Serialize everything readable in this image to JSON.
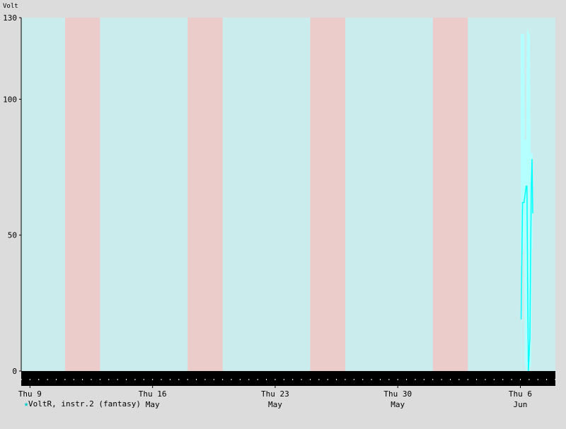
{
  "chart_data": {
    "type": "line",
    "title": "",
    "ylabel": "Volt",
    "xlabel": "",
    "ylim": [
      0,
      130
    ],
    "xlim": [
      "2013-05-08T12:00",
      "2013-06-08T00:00"
    ],
    "yticks": [
      {
        "value": 0,
        "label": "0"
      },
      {
        "value": 50,
        "label": "50"
      },
      {
        "value": 100,
        "label": "100"
      },
      {
        "value": 130,
        "label": "130"
      }
    ],
    "xticks": [
      {
        "at": "2013-05-09T00:00",
        "line1": "Thu 9",
        "line2": ""
      },
      {
        "at": "2013-05-16T00:00",
        "line1": "Thu 16",
        "line2": "May"
      },
      {
        "at": "2013-05-23T00:00",
        "line1": "Thu 23",
        "line2": "May"
      },
      {
        "at": "2013-05-30T00:00",
        "line1": "Thu 30",
        "line2": "May"
      },
      {
        "at": "2013-06-06T00:00",
        "line1": "Thu 6",
        "line2": "Jun"
      }
    ],
    "weekend_bands": [
      {
        "start": "2013-05-11T00:00",
        "end": "2013-05-13T00:00"
      },
      {
        "start": "2013-05-18T00:00",
        "end": "2013-05-20T00:00"
      },
      {
        "start": "2013-05-25T00:00",
        "end": "2013-05-27T00:00"
      },
      {
        "start": "2013-06-01T00:00",
        "end": "2013-06-03T00:00"
      }
    ],
    "series": [
      {
        "name": "VoltR, instr.2 (fantasy)",
        "color": "#00ffff",
        "avg": [
          {
            "x": "2013-06-06T01:00",
            "y": 19
          },
          {
            "x": "2013-06-06T03:00",
            "y": 62
          },
          {
            "x": "2013-06-06T05:00",
            "y": 62
          },
          {
            "x": "2013-06-06T08:00",
            "y": 68
          },
          {
            "x": "2013-06-06T09:00",
            "y": 68
          },
          {
            "x": "2013-06-06T10:00",
            "y": 32
          },
          {
            "x": "2013-06-06T11:00",
            "y": 0
          },
          {
            "x": "2013-06-06T13:00",
            "y": 12
          },
          {
            "x": "2013-06-06T15:00",
            "y": 68
          },
          {
            "x": "2013-06-06T16:00",
            "y": 78
          },
          {
            "x": "2013-06-06T17:00",
            "y": 58
          }
        ],
        "range": [
          {
            "x": "2013-06-06T00:30",
            "min": 0,
            "max": 124
          },
          {
            "x": "2013-06-06T01:00",
            "min": 2,
            "max": 124
          },
          {
            "x": "2013-06-06T02:00",
            "min": 48,
            "max": 124
          },
          {
            "x": "2013-06-06T03:00",
            "min": 44,
            "max": 124
          },
          {
            "x": "2013-06-06T04:00",
            "min": 44,
            "max": 124
          },
          {
            "x": "2013-06-06T05:00",
            "min": 50,
            "max": 124
          },
          {
            "x": "2013-06-06T06:00",
            "min": 2,
            "max": 85
          },
          {
            "x": "2013-06-06T07:00",
            "min": 2,
            "max": 85
          },
          {
            "x": "2013-06-06T08:00",
            "min": 0,
            "max": 85
          },
          {
            "x": "2013-06-06T09:00",
            "min": 0,
            "max": 125
          },
          {
            "x": "2013-06-06T10:00",
            "min": 0,
            "max": 126
          },
          {
            "x": "2013-06-06T11:00",
            "min": 0,
            "max": 125
          },
          {
            "x": "2013-06-06T12:00",
            "min": 0,
            "max": 124
          },
          {
            "x": "2013-06-06T13:00",
            "min": 0,
            "max": 124
          },
          {
            "x": "2013-06-06T14:00",
            "min": 2,
            "max": 80
          },
          {
            "x": "2013-06-06T15:00",
            "min": 2,
            "max": 80
          },
          {
            "x": "2013-06-06T16:00",
            "min": 45,
            "max": 80
          },
          {
            "x": "2013-06-06T17:00",
            "min": 45,
            "max": 80
          }
        ]
      }
    ],
    "colors": {
      "background": "#dcdcdc",
      "weekday": "#cbecec",
      "weekend": "#eccbcb",
      "range_fill": "#b4ffff",
      "line": "#00ffff",
      "bottom_bar": "#000000"
    },
    "grid": false,
    "legend_position": "bottom-left"
  }
}
